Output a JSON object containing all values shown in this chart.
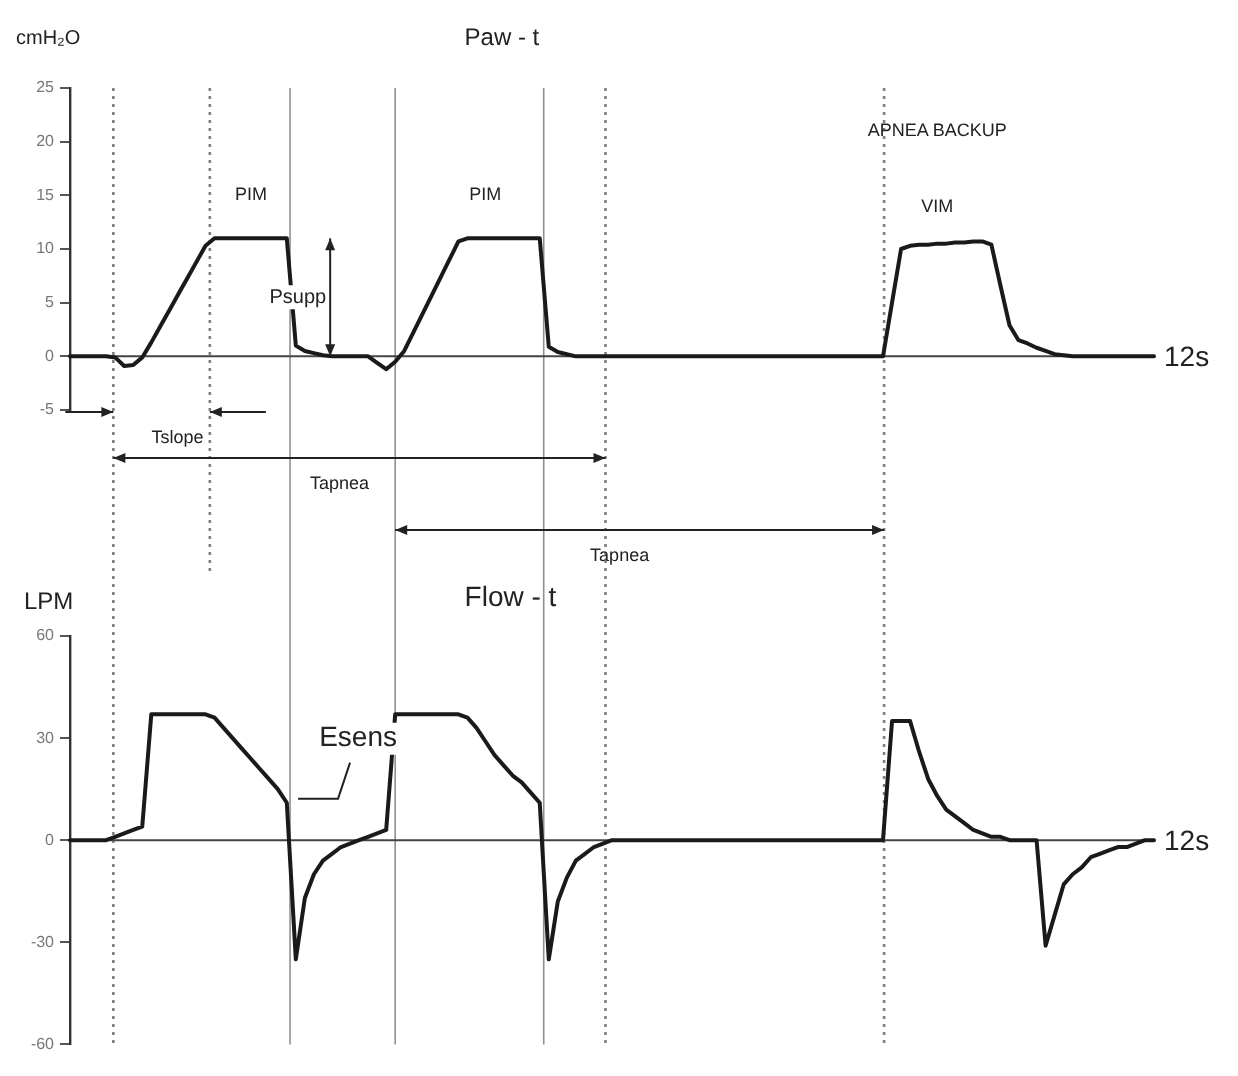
{
  "chart_data": [
    {
      "type": "line",
      "title": "Paw - t",
      "ylabel": "cmH₂O",
      "marker": "none",
      "ylim": [
        -5,
        25
      ],
      "yticks": [
        -5,
        0,
        5,
        10,
        15,
        20,
        25
      ],
      "categories": [
        null,
        null,
        null,
        null,
        null,
        null,
        null,
        null,
        null,
        null,
        null,
        null,
        null,
        null,
        null,
        null,
        null,
        null,
        null,
        null,
        null,
        null,
        null,
        null,
        null,
        null,
        null,
        null,
        null,
        null,
        null,
        null,
        null,
        null,
        null,
        null,
        null,
        null,
        null,
        null,
        null,
        null,
        null,
        null,
        null,
        null,
        null,
        null,
        null,
        null,
        null,
        null,
        null,
        null,
        null,
        null,
        null,
        null,
        null,
        null,
        null,
        null,
        null,
        null,
        null,
        null,
        null,
        null,
        null,
        null,
        null,
        null,
        null,
        null,
        null,
        null,
        null,
        null,
        null,
        null,
        null,
        null,
        null,
        null,
        null,
        null,
        null,
        null,
        null,
        null,
        null,
        null,
        null,
        null,
        null,
        null,
        null,
        null,
        null,
        null,
        null,
        null,
        null,
        null,
        null,
        null,
        null,
        null,
        null,
        null,
        null,
        null,
        null,
        null,
        null,
        null,
        null,
        null,
        null,
        null,
        null
      ],
      "series": [
        {
          "color": "#1a1a1a",
          "values": [
            0,
            0,
            0,
            0,
            0,
            -0.1,
            -0.9,
            -0.8,
            -0.1,
            1.3,
            2.8,
            4.3,
            5.8,
            7.3,
            8.8,
            10.3,
            11,
            11,
            11,
            11,
            11,
            11,
            11,
            11,
            11,
            1,
            0.5,
            0.3,
            0.1,
            0,
            0,
            0,
            0,
            0,
            -0.6,
            -1.2,
            -0.5,
            0.5,
            2.2,
            3.9,
            5.6,
            7.3,
            9,
            10.7,
            11,
            11,
            11,
            11,
            11,
            11,
            11,
            11,
            11,
            0.9,
            0.4,
            0.2,
            0,
            0,
            0,
            0,
            0,
            0,
            0,
            0,
            0,
            0,
            0,
            0,
            0,
            0,
            0,
            0,
            0,
            0,
            0,
            0,
            0,
            0,
            0,
            0,
            0,
            0,
            0,
            0,
            0,
            0,
            0,
            0,
            0,
            0,
            0,
            5,
            10,
            10.3,
            10.4,
            10.4,
            10.5,
            10.5,
            10.6,
            10.6,
            10.7,
            10.7,
            10.4,
            6.6,
            2.9,
            1.5,
            1.2,
            0.8,
            0.5,
            0.2,
            0.1,
            0,
            0,
            0,
            0,
            0,
            0,
            0,
            0,
            0,
            0
          ]
        }
      ],
      "annotations": [
        "PIM",
        "PIM",
        "APNEA BACKUP",
        "VIM",
        "Psupp",
        "12s",
        "Tslope",
        "Tapnea",
        "Tapnea"
      ]
    },
    {
      "type": "line",
      "title": "Flow - t",
      "ylabel": "LPM",
      "marker": "none",
      "ylim": [
        -60,
        60
      ],
      "yticks": [
        -60,
        -30,
        0,
        30,
        60
      ],
      "categories": [
        null,
        null,
        null,
        null,
        null,
        null,
        null,
        null,
        null,
        null,
        null,
        null,
        null,
        null,
        null,
        null,
        null,
        null,
        null,
        null,
        null,
        null,
        null,
        null,
        null,
        null,
        null,
        null,
        null,
        null,
        null,
        null,
        null,
        null,
        null,
        null,
        null,
        null,
        null,
        null,
        null,
        null,
        null,
        null,
        null,
        null,
        null,
        null,
        null,
        null,
        null,
        null,
        null,
        null,
        null,
        null,
        null,
        null,
        null,
        null,
        null,
        null,
        null,
        null,
        null,
        null,
        null,
        null,
        null,
        null,
        null,
        null,
        null,
        null,
        null,
        null,
        null,
        null,
        null,
        null,
        null,
        null,
        null,
        null,
        null,
        null,
        null,
        null,
        null,
        null,
        null,
        null,
        null,
        null,
        null,
        null,
        null,
        null,
        null,
        null,
        null,
        null,
        null,
        null,
        null,
        null,
        null,
        null,
        null,
        null,
        null,
        null,
        null,
        null,
        null,
        null,
        null,
        null,
        null,
        null,
        null
      ],
      "series": [
        {
          "color": "#1a1a1a",
          "values": [
            0,
            0,
            0,
            0,
            0,
            1,
            2,
            3,
            4,
            37,
            37,
            37,
            37,
            37,
            37,
            37,
            36,
            33,
            30,
            27,
            24,
            21,
            18,
            15,
            11,
            -35,
            -17,
            -10,
            -6,
            -4,
            -2,
            -1,
            0,
            1,
            2,
            3,
            37,
            37,
            37,
            37,
            37,
            37,
            37,
            37,
            36,
            33,
            29,
            25,
            22,
            19,
            17,
            14,
            11,
            -35,
            -18,
            -11,
            -6,
            -4,
            -2,
            -1,
            0,
            0,
            0,
            0,
            0,
            0,
            0,
            0,
            0,
            0,
            0,
            0,
            0,
            0,
            0,
            0,
            0,
            0,
            0,
            0,
            0,
            0,
            0,
            0,
            0,
            0,
            0,
            0,
            0,
            0,
            0,
            35,
            35,
            35,
            26,
            18,
            13,
            9,
            7,
            5,
            3,
            2,
            1,
            1,
            0,
            0,
            0,
            0,
            -31,
            -22,
            -13,
            -10,
            -8,
            -5,
            -4,
            -3,
            -2,
            -2,
            -1,
            0,
            0
          ]
        }
      ],
      "annotations": [
        "Esens",
        "12s"
      ]
    }
  ]
}
